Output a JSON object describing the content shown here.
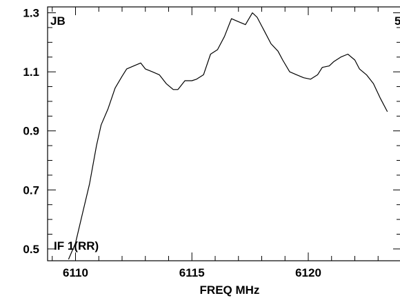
{
  "chart_data": {
    "type": "line",
    "xlabel": "FREQ MHz",
    "ylabel": "",
    "xlim": [
      6108.8,
      6124.0
    ],
    "ylim": [
      0.46,
      1.32
    ],
    "x_ticks": [
      6110,
      6115,
      6120
    ],
    "x_tick_labels": [
      "6110",
      "6115",
      "6120"
    ],
    "y_ticks": [
      0.5,
      0.7,
      0.9,
      1.1,
      1.3
    ],
    "y_tick_labels": [
      "0.5",
      "0.7",
      "0.9",
      "1.1",
      "1.3"
    ],
    "annotations": [
      {
        "text": "JB",
        "position": "top-left"
      },
      {
        "text": "5",
        "position": "top-right"
      },
      {
        "text": "IF 1(RR)",
        "position": "bottom-left"
      }
    ],
    "grid": false,
    "legend": "none",
    "series": [
      {
        "x": [
          6109.7,
          6110.0,
          6110.3,
          6110.6,
          6110.9,
          6111.1,
          6111.4,
          6111.7,
          6112.0,
          6112.2,
          6112.5,
          6112.8,
          6113.0,
          6113.3,
          6113.6,
          6113.9,
          6114.2,
          6114.4,
          6114.7,
          6115.0,
          6115.2,
          6115.5,
          6115.8,
          6116.1,
          6116.4,
          6116.7,
          6117.0,
          6117.3,
          6117.6,
          6117.8,
          6118.1,
          6118.4,
          6118.7,
          6118.9,
          6119.2,
          6119.5,
          6119.8,
          6120.1,
          6120.4,
          6120.6,
          6120.9,
          6121.1,
          6121.4,
          6121.7,
          6122.0,
          6122.2,
          6122.5,
          6122.8,
          6123.1,
          6123.4
        ],
        "y": [
          0.465,
          0.52,
          0.62,
          0.72,
          0.85,
          0.92,
          0.975,
          1.045,
          1.085,
          1.11,
          1.12,
          1.13,
          1.11,
          1.1,
          1.09,
          1.06,
          1.04,
          1.04,
          1.07,
          1.07,
          1.075,
          1.09,
          1.16,
          1.175,
          1.22,
          1.28,
          1.27,
          1.26,
          1.3,
          1.285,
          1.24,
          1.195,
          1.17,
          1.14,
          1.1,
          1.09,
          1.08,
          1.075,
          1.09,
          1.115,
          1.12,
          1.135,
          1.15,
          1.16,
          1.14,
          1.11,
          1.09,
          1.06,
          1.01,
          0.965
        ],
        "color": "#000000"
      }
    ]
  }
}
